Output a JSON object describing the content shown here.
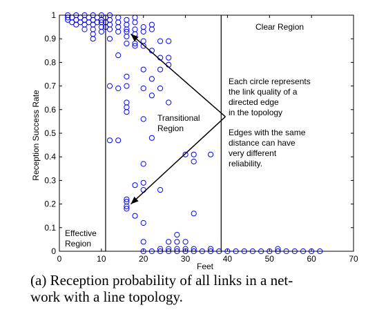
{
  "chart_data": {
    "type": "scatter",
    "title": "",
    "xlabel": "Feet",
    "ylabel": "Reception Success Rate",
    "xlim": [
      0,
      70
    ],
    "ylim": [
      0,
      1
    ],
    "xticks": [
      0,
      10,
      20,
      30,
      40,
      50,
      60,
      70
    ],
    "yticks": [
      0,
      0.1,
      0.2,
      0.3,
      0.4,
      0.5,
      0.6,
      0.7,
      0.8,
      0.9,
      1
    ],
    "marker": "open-circle",
    "marker_color": "#0000ff",
    "region_boundaries_x": [
      11,
      38.5
    ],
    "regions": [
      {
        "label_lines": [
          "Effective",
          "Region"
        ]
      },
      {
        "label_lines": [
          "Transitional",
          "Region"
        ]
      },
      {
        "label_lines": [
          "Clear Region"
        ]
      }
    ],
    "annotations": [
      {
        "lines": [
          "Each circle represents",
          "the link quality of a",
          "directed edge",
          "in the topology"
        ]
      },
      {
        "lines": [
          "Edges with the same",
          "distance can have",
          "very different",
          "reliability."
        ]
      }
    ],
    "arrows": [
      {
        "from": [
          39.5,
          0.57
        ],
        "to": [
          17,
          0.92
        ]
      },
      {
        "from": [
          39.5,
          0.57
        ],
        "to": [
          17,
          0.2
        ]
      }
    ],
    "points": [
      [
        2,
        0.99
      ],
      [
        2,
        0.98
      ],
      [
        2,
        1
      ],
      [
        3,
        0.99
      ],
      [
        3,
        0.97
      ],
      [
        4,
        1
      ],
      [
        4,
        0.98
      ],
      [
        4,
        0.96
      ],
      [
        5,
        0.99
      ],
      [
        5,
        0.97
      ],
      [
        6,
        1
      ],
      [
        6,
        0.98
      ],
      [
        6,
        0.96
      ],
      [
        6,
        0.94
      ],
      [
        7,
        0.99
      ],
      [
        7,
        0.97
      ],
      [
        8,
        1
      ],
      [
        8,
        0.98
      ],
      [
        8,
        0.96
      ],
      [
        8,
        0.94
      ],
      [
        8,
        0.92
      ],
      [
        8,
        0.9
      ],
      [
        9,
        0.99
      ],
      [
        9,
        0.97
      ],
      [
        10,
        1
      ],
      [
        10,
        0.98
      ],
      [
        10,
        0.97
      ],
      [
        10,
        0.95
      ],
      [
        10,
        0.93
      ],
      [
        11,
        0.99
      ],
      [
        11,
        0.97
      ],
      [
        11,
        0.95
      ],
      [
        12,
        1
      ],
      [
        12,
        0.98
      ],
      [
        12,
        0.96
      ],
      [
        12,
        0.94
      ],
      [
        12,
        0.9
      ],
      [
        12,
        0.7
      ],
      [
        12,
        0.47
      ],
      [
        14,
        0.99
      ],
      [
        14,
        0.97
      ],
      [
        14,
        0.95
      ],
      [
        14,
        0.93
      ],
      [
        14,
        0.83
      ],
      [
        14,
        0.69
      ],
      [
        14,
        0.47
      ],
      [
        16,
        0.98
      ],
      [
        16,
        0.96
      ],
      [
        16,
        0.94
      ],
      [
        16,
        0.93
      ],
      [
        16,
        0.91
      ],
      [
        16,
        0.88
      ],
      [
        16,
        0.74
      ],
      [
        16,
        0.7
      ],
      [
        16,
        0.63
      ],
      [
        16,
        0.61
      ],
      [
        16,
        0.59
      ],
      [
        16,
        0.22
      ],
      [
        16,
        0.21
      ],
      [
        16,
        0.19
      ],
      [
        16,
        0.18
      ],
      [
        18,
        0.99
      ],
      [
        18,
        0.97
      ],
      [
        18,
        0.94
      ],
      [
        18,
        0.92
      ],
      [
        18,
        0.88
      ],
      [
        18,
        0.87
      ],
      [
        18,
        0.28
      ],
      [
        18,
        0.15
      ],
      [
        20,
        0.95
      ],
      [
        20,
        0.93
      ],
      [
        20,
        0.89
      ],
      [
        20,
        0.87
      ],
      [
        20,
        0.77
      ],
      [
        20,
        0.69
      ],
      [
        20,
        0.56
      ],
      [
        20,
        0.37
      ],
      [
        20,
        0.29
      ],
      [
        20,
        0.26
      ],
      [
        20,
        0.12
      ],
      [
        20,
        0.04
      ],
      [
        20,
        0
      ],
      [
        22,
        0.96
      ],
      [
        22,
        0.94
      ],
      [
        22,
        0.85
      ],
      [
        22,
        0.73
      ],
      [
        22,
        0.66
      ],
      [
        22,
        0.48
      ],
      [
        22,
        0
      ],
      [
        24,
        0.89
      ],
      [
        24,
        0.82
      ],
      [
        24,
        0.77
      ],
      [
        24,
        0.69
      ],
      [
        24,
        0.26
      ],
      [
        24,
        0.01
      ],
      [
        24,
        0
      ],
      [
        26,
        0.89
      ],
      [
        26,
        0.82
      ],
      [
        26,
        0.79
      ],
      [
        26,
        0.63
      ],
      [
        26,
        0.04
      ],
      [
        26,
        0.01
      ],
      [
        26,
        0
      ],
      [
        28,
        0.07
      ],
      [
        28,
        0.04
      ],
      [
        28,
        0.01
      ],
      [
        28,
        0
      ],
      [
        30,
        0.41
      ],
      [
        30,
        0.04
      ],
      [
        30,
        0.01
      ],
      [
        30,
        0
      ],
      [
        32,
        0.41
      ],
      [
        32,
        0.38
      ],
      [
        32,
        0.16
      ],
      [
        32,
        0.01
      ],
      [
        32,
        0
      ],
      [
        34,
        0
      ],
      [
        36,
        0.41
      ],
      [
        36,
        0.01
      ],
      [
        36,
        0
      ],
      [
        38,
        0
      ],
      [
        40,
        0
      ],
      [
        42,
        0
      ],
      [
        44,
        0
      ],
      [
        46,
        0
      ],
      [
        48,
        0
      ],
      [
        50,
        0
      ],
      [
        52,
        0.01
      ],
      [
        52,
        0
      ],
      [
        54,
        0
      ],
      [
        56,
        0
      ],
      [
        58,
        0
      ],
      [
        60,
        0
      ],
      [
        62,
        0
      ]
    ]
  },
  "caption": {
    "line1": "(a) Reception probability of all links in a net-",
    "line2": "work with a line topology."
  }
}
